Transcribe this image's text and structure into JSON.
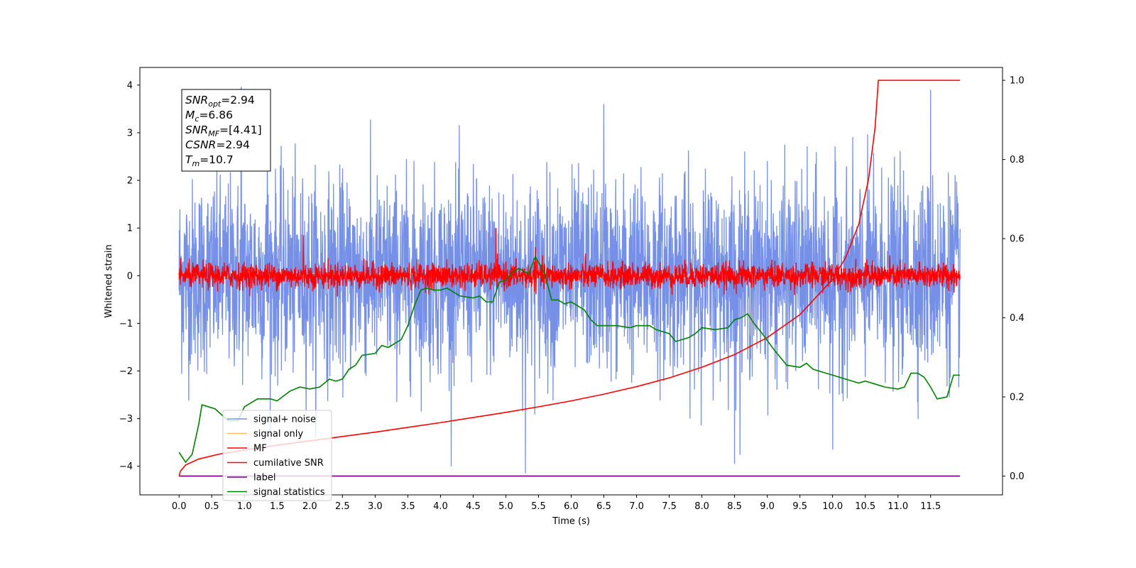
{
  "chart_data": {
    "type": "line",
    "xlabel": "Time (s)",
    "ylabel": "Whitened strain",
    "xlim": [
      -0.6,
      12.6
    ],
    "ylim": [
      -4.6,
      4.37
    ],
    "y2lim": [
      -0.0475,
      1.0325
    ],
    "x_ticks": [
      0.0,
      0.5,
      1.0,
      1.5,
      2.0,
      2.5,
      3.0,
      3.5,
      4.0,
      4.5,
      5.0,
      5.5,
      6.0,
      6.5,
      7.0,
      7.5,
      8.0,
      8.5,
      9.0,
      9.5,
      10.0,
      10.5,
      11.0,
      11.5
    ],
    "x_tick_labels": [
      "0.0",
      "0.5",
      "1.0",
      "1.5",
      "2.0",
      "2.5",
      "3.0",
      "3.5",
      "4.0",
      "4.5",
      "5.0",
      "5.5",
      "6.0",
      "6.5",
      "7.0",
      "7.5",
      "8.0",
      "8.5",
      "9.0",
      "9.5",
      "10.0",
      "10.5",
      "11.0",
      "11.5"
    ],
    "y_ticks": [
      -4,
      -3,
      -2,
      -1,
      0,
      1,
      2,
      3,
      4
    ],
    "y_tick_labels": [
      "−4",
      "−3",
      "−2",
      "−1",
      "0",
      "1",
      "2",
      "3",
      "4"
    ],
    "y2_ticks": [
      0.0,
      0.2,
      0.4,
      0.6,
      0.8,
      1.0
    ],
    "y2_tick_labels": [
      "0.0",
      "0.2",
      "0.4",
      "0.6",
      "0.8",
      "1.0"
    ],
    "grid": false,
    "legend_position": "lower-left",
    "annotation": {
      "lines": [
        {
          "sym": "SNR",
          "sub": "opt",
          "val": "=2.94"
        },
        {
          "sym": "M",
          "sub": "c",
          "val": "=6.86"
        },
        {
          "sym": "SNR",
          "sub": "MF",
          "val": "=[4.41]"
        },
        {
          "sym": "CSNR",
          "sub": "",
          "val": "=2.94"
        },
        {
          "sym": "T",
          "sub": "m",
          "val": "=10.7"
        }
      ]
    },
    "series": [
      {
        "name": "signal+ noise",
        "axis": "left",
        "color": "#7590e6",
        "x_start": 0.0,
        "x_end": 11.95,
        "noise_sigma": 1.0,
        "noise_clip": 4.0,
        "peaks": [
          [
            0.95,
            3.95
          ],
          [
            5.3,
            -4.15
          ],
          [
            8.5,
            -3.95
          ],
          [
            10.0,
            -3.65
          ],
          [
            11.5,
            3.9
          ],
          [
            1.35,
            3.4
          ],
          [
            6.5,
            3.6
          ]
        ]
      },
      {
        "name": "signal only",
        "axis": "left",
        "color": "#ffbf66",
        "x_start": 0.0,
        "x_end": 11.95,
        "amplitude": 0.05
      },
      {
        "name": "MF",
        "axis": "left",
        "color": "#ff0000",
        "x_start": 0.0,
        "x_end": 11.95,
        "noise_sigma": 0.13,
        "peaks": [
          [
            4.85,
            1.0
          ],
          [
            5.45,
            0.6
          ],
          [
            1.9,
            0.85
          ]
        ]
      },
      {
        "name": "cumilative SNR",
        "axis": "right",
        "color": "#ff0000",
        "points": [
          [
            0.0,
            0.0
          ],
          [
            0.02,
            0.012
          ],
          [
            0.1,
            0.028
          ],
          [
            0.3,
            0.043
          ],
          [
            0.6,
            0.055
          ],
          [
            1.0,
            0.066
          ],
          [
            1.5,
            0.078
          ],
          [
            2.0,
            0.089
          ],
          [
            2.5,
            0.1
          ],
          [
            3.0,
            0.111
          ],
          [
            3.5,
            0.123
          ],
          [
            4.0,
            0.135
          ],
          [
            4.5,
            0.148
          ],
          [
            5.0,
            0.161
          ],
          [
            5.5,
            0.175
          ],
          [
            6.0,
            0.19
          ],
          [
            6.5,
            0.207
          ],
          [
            7.0,
            0.226
          ],
          [
            7.5,
            0.248
          ],
          [
            8.0,
            0.275
          ],
          [
            8.5,
            0.307
          ],
          [
            9.0,
            0.35
          ],
          [
            9.5,
            0.408
          ],
          [
            10.0,
            0.497
          ],
          [
            10.2,
            0.552
          ],
          [
            10.4,
            0.636
          ],
          [
            10.55,
            0.75
          ],
          [
            10.65,
            0.88
          ],
          [
            10.7,
            1.0
          ],
          [
            11.0,
            1.0
          ],
          [
            11.95,
            1.0
          ]
        ]
      },
      {
        "name": "label",
        "axis": "right",
        "color": "#800080",
        "points": [
          [
            0.0,
            0.0
          ],
          [
            11.95,
            0.0
          ]
        ]
      },
      {
        "name": "signal statistics",
        "axis": "right",
        "color": "#008000",
        "points": [
          [
            0.0,
            0.06
          ],
          [
            0.1,
            0.035
          ],
          [
            0.2,
            0.055
          ],
          [
            0.3,
            0.13
          ],
          [
            0.35,
            0.18
          ],
          [
            0.55,
            0.17
          ],
          [
            0.75,
            0.14
          ],
          [
            0.9,
            0.14
          ],
          [
            1.0,
            0.175
          ],
          [
            1.2,
            0.195
          ],
          [
            1.4,
            0.195
          ],
          [
            1.5,
            0.19
          ],
          [
            1.7,
            0.215
          ],
          [
            1.85,
            0.225
          ],
          [
            2.0,
            0.22
          ],
          [
            2.15,
            0.225
          ],
          [
            2.3,
            0.245
          ],
          [
            2.4,
            0.24
          ],
          [
            2.5,
            0.245
          ],
          [
            2.6,
            0.27
          ],
          [
            2.7,
            0.28
          ],
          [
            2.8,
            0.305
          ],
          [
            3.0,
            0.31
          ],
          [
            3.1,
            0.33
          ],
          [
            3.2,
            0.325
          ],
          [
            3.3,
            0.335
          ],
          [
            3.4,
            0.345
          ],
          [
            3.5,
            0.38
          ],
          [
            3.6,
            0.43
          ],
          [
            3.7,
            0.47
          ],
          [
            3.8,
            0.475
          ],
          [
            3.9,
            0.47
          ],
          [
            4.0,
            0.47
          ],
          [
            4.1,
            0.475
          ],
          [
            4.3,
            0.455
          ],
          [
            4.5,
            0.45
          ],
          [
            4.6,
            0.455
          ],
          [
            4.7,
            0.44
          ],
          [
            4.8,
            0.44
          ],
          [
            4.9,
            0.49
          ],
          [
            5.0,
            0.495
          ],
          [
            5.1,
            0.515
          ],
          [
            5.2,
            0.525
          ],
          [
            5.35,
            0.51
          ],
          [
            5.45,
            0.555
          ],
          [
            5.5,
            0.54
          ],
          [
            5.6,
            0.51
          ],
          [
            5.7,
            0.445
          ],
          [
            5.8,
            0.445
          ],
          [
            5.9,
            0.435
          ],
          [
            6.0,
            0.44
          ],
          [
            6.1,
            0.43
          ],
          [
            6.2,
            0.42
          ],
          [
            6.3,
            0.395
          ],
          [
            6.4,
            0.38
          ],
          [
            6.5,
            0.38
          ],
          [
            6.7,
            0.38
          ],
          [
            6.9,
            0.375
          ],
          [
            7.0,
            0.38
          ],
          [
            7.2,
            0.38
          ],
          [
            7.3,
            0.37
          ],
          [
            7.5,
            0.36
          ],
          [
            7.6,
            0.34
          ],
          [
            7.8,
            0.35
          ],
          [
            7.9,
            0.36
          ],
          [
            8.0,
            0.375
          ],
          [
            8.2,
            0.37
          ],
          [
            8.4,
            0.375
          ],
          [
            8.5,
            0.395
          ],
          [
            8.6,
            0.4
          ],
          [
            8.7,
            0.41
          ],
          [
            8.8,
            0.385
          ],
          [
            8.9,
            0.365
          ],
          [
            9.1,
            0.32
          ],
          [
            9.3,
            0.28
          ],
          [
            9.5,
            0.275
          ],
          [
            9.6,
            0.285
          ],
          [
            9.7,
            0.27
          ],
          [
            9.9,
            0.26
          ],
          [
            10.1,
            0.25
          ],
          [
            10.3,
            0.24
          ],
          [
            10.4,
            0.235
          ],
          [
            10.5,
            0.24
          ],
          [
            10.7,
            0.23
          ],
          [
            10.8,
            0.225
          ],
          [
            11.0,
            0.22
          ],
          [
            11.1,
            0.225
          ],
          [
            11.2,
            0.26
          ],
          [
            11.3,
            0.26
          ],
          [
            11.4,
            0.25
          ],
          [
            11.5,
            0.225
          ],
          [
            11.6,
            0.195
          ],
          [
            11.75,
            0.2
          ],
          [
            11.85,
            0.255
          ],
          [
            11.95,
            0.255
          ]
        ]
      }
    ]
  }
}
